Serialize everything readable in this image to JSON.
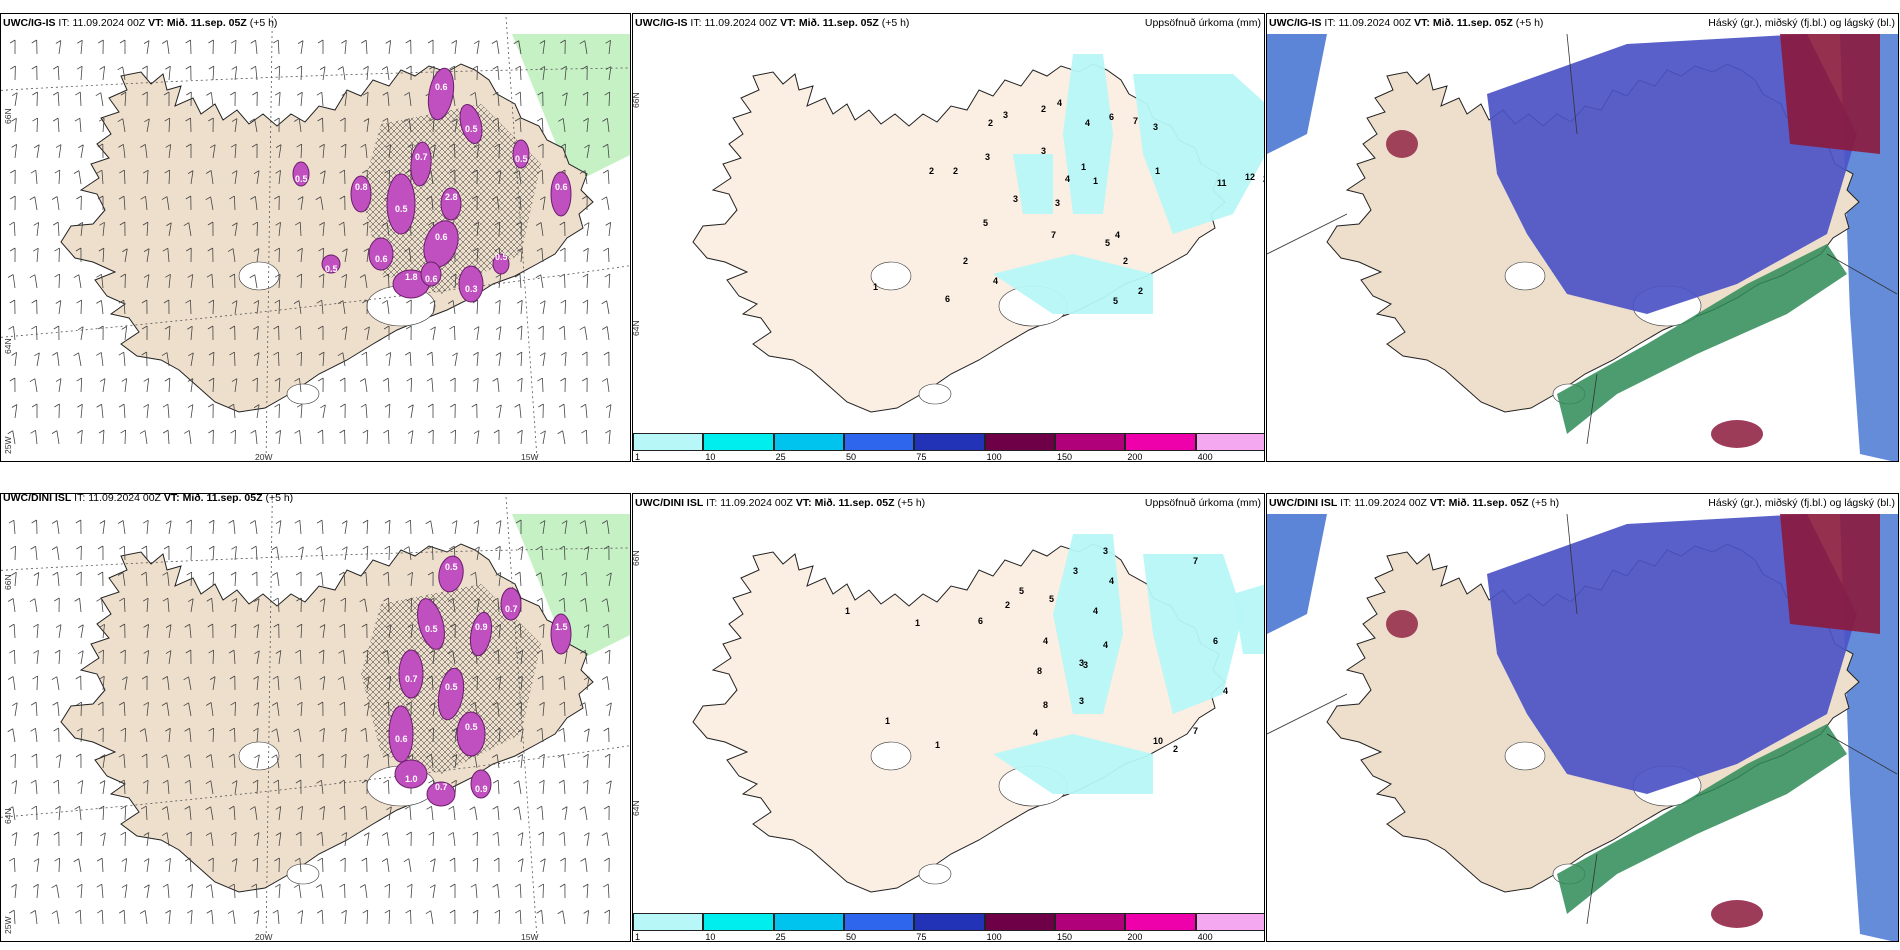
{
  "panels": [
    {
      "id": "igis-wind",
      "model": "UWC/IG-IS",
      "init_label": "IT:",
      "init_time": "11.09.2024 00Z",
      "valid_label": "VT:",
      "valid_time": "Mið. 11.sep. 05Z",
      "lead": "(+5 h)",
      "lat_labels": [
        "66N",
        "64N"
      ],
      "lon_labels": [
        "25W",
        "20W",
        "15W"
      ],
      "values": [
        "0.6",
        "0.5",
        "0.7",
        "0.5",
        "0.6",
        "0.3",
        "0.8",
        "0.5",
        "0.6",
        "0.5",
        "1.8",
        "0.6",
        "2.8",
        "0.6",
        "0.5",
        "0.5"
      ]
    },
    {
      "id": "igis-precip",
      "model": "UWC/IG-IS",
      "init_label": "IT:",
      "init_time": "11.09.2024 00Z",
      "valid_label": "VT:",
      "valid_time": "Mið. 11.sep. 05Z",
      "lead": "(+5 h)",
      "right_label": "Uppsöfnuð úrkoma (mm)",
      "lat_labels": [
        "66N",
        "64N"
      ],
      "values": [
        "2",
        "3",
        "4",
        "4",
        "6",
        "7",
        "1",
        "3",
        "1",
        "2",
        "2",
        "3",
        "3",
        "4",
        "12",
        "1",
        "11",
        "2",
        "2",
        "5",
        "4",
        "3",
        "3",
        "5",
        "7",
        "2",
        "2",
        "6",
        "4",
        "5",
        "2",
        "1",
        "2"
      ]
    },
    {
      "id": "igis-cloud",
      "model": "UWC/IG-IS",
      "init_label": "IT:",
      "init_time": "11.09.2024 00Z",
      "valid_label": "VT:",
      "valid_time": "Mið. 11.sep. 05Z",
      "lead": "(+5 h)",
      "right_label": "Háský (gr.), miðský (fj.bl.) og lágský (bl.)"
    },
    {
      "id": "dini-wind",
      "model": "UWC/DINI ISL",
      "init_label": "IT:",
      "init_time": "11.09.2024 00Z",
      "valid_label": "VT:",
      "valid_time": "Mið. 11.sep. 05Z",
      "lead": "(+5 h)",
      "lat_labels": [
        "66N",
        "64N"
      ],
      "lon_labels": [
        "25W",
        "20W",
        "15W"
      ],
      "values": [
        "0.5",
        "0.5",
        "0.9",
        "0.7",
        "0.5",
        "0.6",
        "0.5",
        "1.0",
        "0.7",
        "0.9",
        "1.5",
        "0.7"
      ]
    },
    {
      "id": "dini-precip",
      "model": "UWC/DINI ISL",
      "init_label": "IT:",
      "init_time": "11.09.2024 00Z",
      "valid_label": "VT:",
      "valid_time": "Mið. 11.sep. 05Z",
      "lead": "(+5 h)",
      "right_label": "Uppsöfnuð úrkoma (mm)",
      "lat_labels": [
        "66N",
        "64N"
      ],
      "values": [
        "3",
        "3",
        "4",
        "7",
        "2",
        "5",
        "5",
        "4",
        "1",
        "6",
        "1",
        "4",
        "3",
        "8",
        "4",
        "3",
        "3",
        "6",
        "8",
        "7",
        "1",
        "4",
        "10",
        "2",
        "4",
        "1"
      ]
    },
    {
      "id": "dini-cloud",
      "model": "UWC/DINI ISL",
      "init_label": "IT:",
      "init_time": "11.09.2024 00Z",
      "valid_label": "VT:",
      "valid_time": "Mið. 11.sep. 05Z",
      "lead": "(+5 h)",
      "right_label": "Háský (gr.), miðský (fj.bl.) og lágský (bl.)"
    }
  ],
  "colorbar": {
    "ticks": [
      "1",
      "10",
      "25",
      "50",
      "75",
      "100",
      "150",
      "200",
      "400"
    ],
    "colors": [
      "#b7f7f7",
      "#00eeee",
      "#00c4ee",
      "#2e66ee",
      "#2233b8",
      "#6e0048",
      "#b0007a",
      "#ee00aa",
      "#f4a8f0"
    ]
  },
  "colors": {
    "land": "#eedfcc",
    "land_light": "#fbeee2",
    "precip_light": "#b7f7f7",
    "wind_magenta": "#c04fc0",
    "mid_cloud": "#4b52c6",
    "low_cloud": "#2e8b57",
    "high_cloud": "#8b1a3c"
  }
}
